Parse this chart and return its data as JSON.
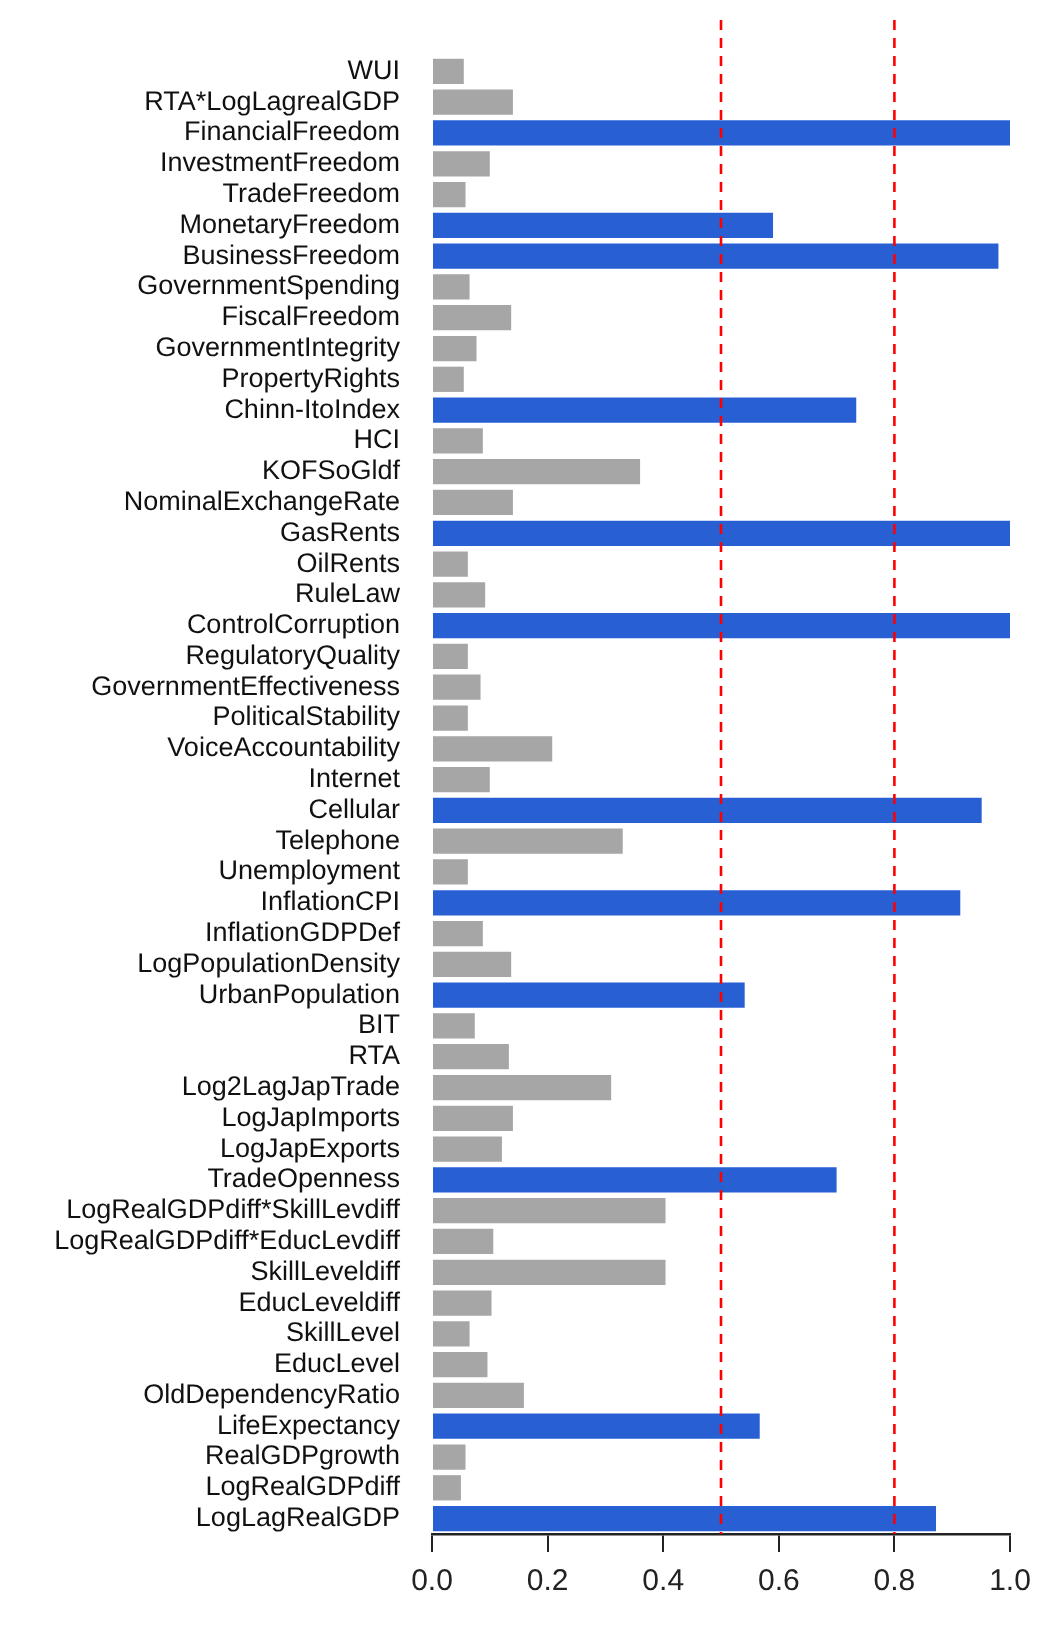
{
  "chart_data": {
    "type": "bar",
    "orientation": "horizontal",
    "categories": [
      "WUI",
      "RTA*LogLagrealGDP",
      "FinancialFreedom",
      "InvestmentFreedom",
      "TradeFreedom",
      "MonetaryFreedom",
      "BusinessFreedom",
      "GovernmentSpending",
      "FiscalFreedom",
      "GovernmentIntegrity",
      "PropertyRights",
      "Chinn-ItoIndex",
      "HCI",
      "KOFSoGldf",
      "NominalExchangeRate",
      "GasRents",
      "OilRents",
      "RuleLaw",
      "ControlCorruption",
      "RegulatoryQuality",
      "GovernmentEffectiveness",
      "PoliticalStability",
      "VoiceAccountability",
      "Internet",
      "Cellular",
      "Telephone",
      "Unemployment",
      "InflationCPI",
      "InflationGDPDef",
      "LogPopulationDensity",
      "UrbanPopulation",
      "BIT",
      "RTA",
      "Log2LagJapTrade",
      "LogJapImports",
      "LogJapExports",
      "TradeOpenness",
      "LogRealGDPdiff*SkillLevdiff",
      "LogRealGDPdiff*EducLevdiff",
      "SkillLeveldiff",
      "EducLeveldiff",
      "SkillLevel",
      "EducLevel",
      "OldDependencyRatio",
      "LifeExpectancy",
      "RealGDPgrowth",
      "LogRealGDPdiff",
      "LogLagRealGDP"
    ],
    "values": [
      0.055,
      0.14,
      1.0,
      0.1,
      0.058,
      0.59,
      0.98,
      0.065,
      0.137,
      0.077,
      0.055,
      0.734,
      0.088,
      0.36,
      0.14,
      1.0,
      0.062,
      0.092,
      1.0,
      0.062,
      0.084,
      0.062,
      0.208,
      0.1,
      0.951,
      0.33,
      0.062,
      0.914,
      0.088,
      0.137,
      0.541,
      0.074,
      0.133,
      0.31,
      0.14,
      0.121,
      0.7,
      0.404,
      0.106,
      0.404,
      0.103,
      0.065,
      0.096,
      0.159,
      0.567,
      0.058,
      0.05,
      0.872
    ],
    "colors": [
      "#a6a6a6",
      "#a6a6a6",
      "#2860d4",
      "#a6a6a6",
      "#a6a6a6",
      "#2860d4",
      "#2860d4",
      "#a6a6a6",
      "#a6a6a6",
      "#a6a6a6",
      "#a6a6a6",
      "#2860d4",
      "#a6a6a6",
      "#a6a6a6",
      "#a6a6a6",
      "#2860d4",
      "#a6a6a6",
      "#a6a6a6",
      "#2860d4",
      "#a6a6a6",
      "#a6a6a6",
      "#a6a6a6",
      "#a6a6a6",
      "#a6a6a6",
      "#2860d4",
      "#a6a6a6",
      "#a6a6a6",
      "#2860d4",
      "#a6a6a6",
      "#a6a6a6",
      "#2860d4",
      "#a6a6a6",
      "#a6a6a6",
      "#a6a6a6",
      "#a6a6a6",
      "#a6a6a6",
      "#2860d4",
      "#a6a6a6",
      "#a6a6a6",
      "#a6a6a6",
      "#a6a6a6",
      "#a6a6a6",
      "#a6a6a6",
      "#a6a6a6",
      "#2860d4",
      "#a6a6a6",
      "#a6a6a6",
      "#2860d4"
    ],
    "xlim": [
      0,
      1
    ],
    "xticks": [
      {
        "value": 0,
        "label": "0.0"
      },
      {
        "value": 0.2,
        "label": "0.2"
      },
      {
        "value": 0.4,
        "label": "0.4"
      },
      {
        "value": 0.6,
        "label": "0.6"
      },
      {
        "value": 0.8,
        "label": "0.8"
      },
      {
        "value": 1,
        "label": "1.0"
      }
    ],
    "ref_lines": [
      {
        "axis": "x",
        "value": 0.5,
        "color": "#ff0000",
        "line_style": "dashed"
      },
      {
        "axis": "x",
        "value": 0.8,
        "color": "#ff0000",
        "line_style": "dashed"
      }
    ],
    "grid": false,
    "legend": false
  }
}
